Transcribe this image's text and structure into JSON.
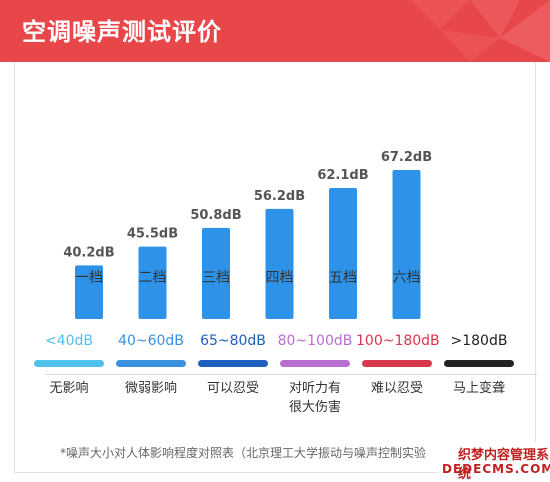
{
  "header": {
    "title": "空调噪声测试评价",
    "bg_color": "#e8474a"
  },
  "chart_data": {
    "type": "bar",
    "categories": [
      "一档",
      "二档",
      "三档",
      "四档",
      "五档",
      "六档"
    ],
    "values": [
      40.2,
      45.5,
      50.8,
      56.2,
      62.1,
      67.2
    ],
    "value_labels": [
      "40.2dB",
      "45.5dB",
      "50.8dB",
      "56.2dB",
      "62.1dB",
      "67.2dB"
    ],
    "unit": "dB",
    "title": "",
    "xlabel": "",
    "ylabel": "",
    "bar_color": "#2e93e8",
    "grid": false
  },
  "legend": {
    "items": [
      {
        "range": "<40dB",
        "effect": "无影响",
        "color": "#4fc1ea"
      },
      {
        "range": "40~60dB",
        "effect": "微弱影响",
        "color": "#3a91e0"
      },
      {
        "range": "65~80dB",
        "effect": "可以忍受",
        "color": "#1e5fc0"
      },
      {
        "range": "80~100dB",
        "effect": "对听力有\n很大伤害",
        "color": "#b86fd0"
      },
      {
        "range": "100~180dB",
        "effect": "难以忍受",
        "color": "#d8364a"
      },
      {
        "range": ">180dB",
        "effect": "马上变聋",
        "color": "#222222"
      }
    ]
  },
  "footnote": "*噪声大小对人体影响程度对照表（北京理工大学振动与噪声控制实验",
  "watermark": {
    "line1": "织梦内容管理系统",
    "line2": "DEDECMS.COM"
  }
}
